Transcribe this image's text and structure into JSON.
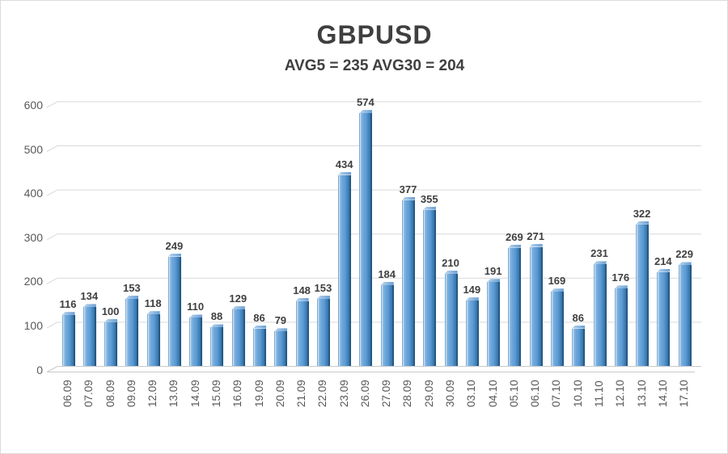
{
  "page": {
    "background": "#ffffff",
    "border_color": "#dcdcdc"
  },
  "chart_data": {
    "type": "bar",
    "style": "3d-column",
    "title": "GBPUSD",
    "subtitle": "AVG5 = 235 AVG30 = 204",
    "avg5": 235,
    "avg30": 204,
    "categories": [
      "06.09",
      "07.09",
      "08.09",
      "09.09",
      "12.09",
      "13.09",
      "14.09",
      "15.09",
      "16.09",
      "19.09",
      "20.09",
      "21.09",
      "22.09",
      "23.09",
      "26.09",
      "27.09",
      "28.09",
      "29.09",
      "30.09",
      "03.10",
      "04.10",
      "05.10",
      "06.10",
      "07.10",
      "10.10",
      "11.10",
      "12.10",
      "13.10",
      "14.10",
      "17.10"
    ],
    "values": [
      116,
      134,
      100,
      153,
      118,
      249,
      110,
      88,
      129,
      86,
      79,
      148,
      153,
      434,
      574,
      184,
      377,
      355,
      210,
      149,
      191,
      269,
      271,
      169,
      86,
      231,
      176,
      322,
      214,
      229
    ],
    "xlabel": "",
    "ylabel": "",
    "ylim": [
      0,
      600
    ],
    "yticks": [
      0,
      100,
      200,
      300,
      400,
      500,
      600
    ],
    "grid": true,
    "legend": "none",
    "data_labels": true,
    "colors": {
      "bar_fill": "#5b9bd5",
      "bar_fill_light": "#a5c9e9",
      "bar_edge_dark": "#255a87",
      "gridline": "#d9d9d9",
      "floor_line": "#c9c9c9",
      "axis_text": "#595959",
      "label_text": "#3f3f3f",
      "title_text": "#3f3f3f"
    }
  }
}
